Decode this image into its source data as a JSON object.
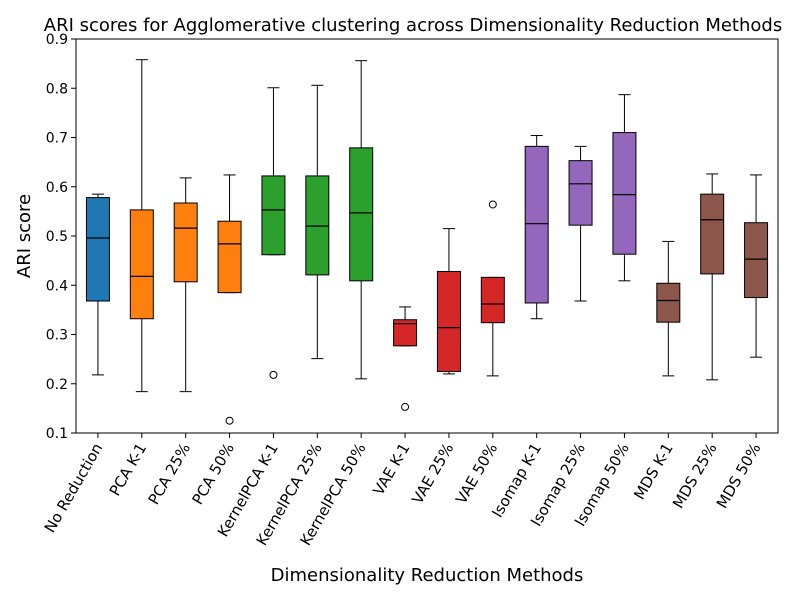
{
  "chart_data": {
    "type": "box",
    "title": "ARI scores for Agglomerative clustering across Dimensionality Reduction Methods",
    "xlabel": "Dimensionality Reduction Methods",
    "ylabel": "ARI score",
    "ylim": [
      0.1,
      0.9
    ],
    "yticks": [
      "0.1",
      "0.2",
      "0.3",
      "0.4",
      "0.5",
      "0.6",
      "0.7",
      "0.8",
      "0.9"
    ],
    "grid": false,
    "boxes": [
      {
        "label": "No Reduction",
        "color": "#1f77b4",
        "whisker_low": 0.218,
        "q1": 0.368,
        "median": 0.496,
        "q3": 0.578,
        "whisker_high": 0.585,
        "outliers": []
      },
      {
        "label": "PCA K-1",
        "color": "#ff7f0e",
        "whisker_low": 0.184,
        "q1": 0.332,
        "median": 0.418,
        "q3": 0.553,
        "whisker_high": 0.858,
        "outliers": []
      },
      {
        "label": "PCA 25%",
        "color": "#ff7f0e",
        "whisker_low": 0.184,
        "q1": 0.407,
        "median": 0.516,
        "q3": 0.567,
        "whisker_high": 0.618,
        "outliers": []
      },
      {
        "label": "PCA 50%",
        "color": "#ff7f0e",
        "whisker_low": 0.385,
        "q1": 0.385,
        "median": 0.484,
        "q3": 0.53,
        "whisker_high": 0.624,
        "outliers": [
          0.125
        ]
      },
      {
        "label": "KernelPCA K-1",
        "color": "#2ca02c",
        "whisker_low": 0.462,
        "q1": 0.462,
        "median": 0.553,
        "q3": 0.622,
        "whisker_high": 0.801,
        "outliers": [
          0.218
        ]
      },
      {
        "label": "KernelPCA 25%",
        "color": "#2ca02c",
        "whisker_low": 0.251,
        "q1": 0.421,
        "median": 0.52,
        "q3": 0.622,
        "whisker_high": 0.806,
        "outliers": []
      },
      {
        "label": "KernelPCA 50%",
        "color": "#2ca02c",
        "whisker_low": 0.21,
        "q1": 0.409,
        "median": 0.547,
        "q3": 0.679,
        "whisker_high": 0.856,
        "outliers": []
      },
      {
        "label": "VAE K-1",
        "color": "#d62728",
        "whisker_low": 0.277,
        "q1": 0.277,
        "median": 0.322,
        "q3": 0.33,
        "whisker_high": 0.356,
        "outliers": [
          0.153
        ]
      },
      {
        "label": "VAE 25%",
        "color": "#d62728",
        "whisker_low": 0.22,
        "q1": 0.225,
        "median": 0.314,
        "q3": 0.428,
        "whisker_high": 0.515,
        "outliers": []
      },
      {
        "label": "VAE 50%",
        "color": "#d62728",
        "whisker_low": 0.216,
        "q1": 0.324,
        "median": 0.362,
        "q3": 0.416,
        "whisker_high": 0.416,
        "outliers": [
          0.564
        ]
      },
      {
        "label": "Isomap K-1",
        "color": "#9467bd",
        "whisker_low": 0.332,
        "q1": 0.364,
        "median": 0.525,
        "q3": 0.682,
        "whisker_high": 0.704,
        "outliers": []
      },
      {
        "label": "Isomap 25%",
        "color": "#9467bd",
        "whisker_low": 0.368,
        "q1": 0.522,
        "median": 0.606,
        "q3": 0.653,
        "whisker_high": 0.682,
        "outliers": []
      },
      {
        "label": "Isomap 50%",
        "color": "#9467bd",
        "whisker_low": 0.409,
        "q1": 0.463,
        "median": 0.584,
        "q3": 0.71,
        "whisker_high": 0.787,
        "outliers": []
      },
      {
        "label": "MDS K-1",
        "color": "#8c564b",
        "whisker_low": 0.216,
        "q1": 0.325,
        "median": 0.369,
        "q3": 0.404,
        "whisker_high": 0.489,
        "outliers": []
      },
      {
        "label": "MDS 25%",
        "color": "#8c564b",
        "whisker_low": 0.208,
        "q1": 0.423,
        "median": 0.533,
        "q3": 0.585,
        "whisker_high": 0.626,
        "outliers": []
      },
      {
        "label": "MDS 50%",
        "color": "#8c564b",
        "whisker_low": 0.254,
        "q1": 0.375,
        "median": 0.453,
        "q3": 0.527,
        "whisker_high": 0.624,
        "outliers": []
      }
    ]
  }
}
